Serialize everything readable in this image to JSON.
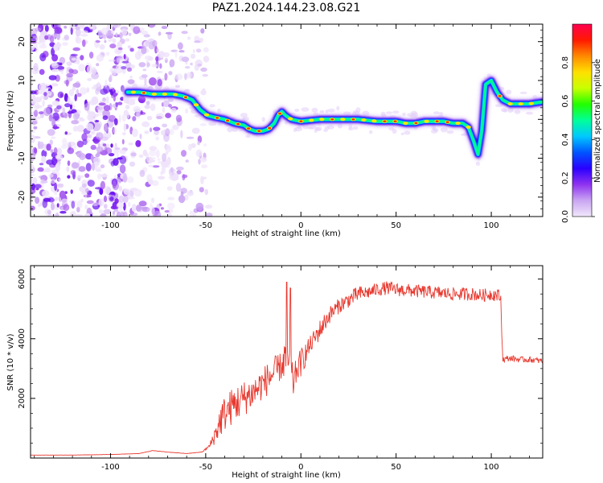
{
  "page_title": "PAZ1.2024.144.23.08.G21",
  "chart_data": [
    {
      "type": "heatmap",
      "title": "PAZ1.2024.144.23.08.G21",
      "xlabel": "Height of straight line (km)",
      "ylabel": "Frequency (Hz)",
      "xlim": [
        -142,
        127
      ],
      "ylim": [
        -25,
        24.5
      ],
      "xticks": [
        -100,
        -50,
        0,
        50,
        100
      ],
      "yticks": [
        -20,
        -10,
        0,
        10,
        20
      ],
      "grid": false,
      "colorbar": {
        "label": "Normalized spectral amplitude",
        "ticks": [
          0.0,
          0.2,
          0.4,
          0.6,
          0.8
        ],
        "range": [
          0,
          1
        ],
        "colormap": [
          "#f2e8fb",
          "#c9a6f2",
          "#8f32f0",
          "#2a00ff",
          "#0055ff",
          "#00c8ff",
          "#00ff9a",
          "#22ff00",
          "#c8ff00",
          "#ffe000",
          "#ff8a00",
          "#ff1a00",
          "#ff0050"
        ]
      },
      "ridge": {
        "x": [
          -91,
          -85,
          -78,
          -72,
          -67,
          -62,
          -57,
          -53,
          -49,
          -45,
          -40,
          -35,
          -30,
          -27,
          -24,
          -20,
          -17,
          -14,
          -12,
          -10,
          -8,
          -5,
          0,
          10,
          20,
          30,
          40,
          50,
          55,
          60,
          65,
          70,
          75,
          80,
          85,
          88,
          91,
          93,
          95,
          97,
          100,
          103,
          106,
          110,
          115,
          120,
          127
        ],
        "freq": [
          7,
          7,
          6.5,
          6.5,
          6.5,
          6,
          5,
          2.5,
          1,
          0.5,
          0,
          -1,
          -1.5,
          -2.5,
          -3,
          -3,
          -2.5,
          -1,
          1,
          2,
          1,
          0,
          -0.5,
          0,
          0,
          0,
          -0.5,
          -0.5,
          -1,
          -1,
          -0.5,
          -0.5,
          -0.5,
          -1,
          -1,
          -2,
          -6,
          -9,
          -3,
          9,
          10,
          7,
          5,
          4,
          4,
          4,
          4.5
        ]
      }
    },
    {
      "type": "line",
      "title": "",
      "xlabel": "Height of straight line (km)",
      "ylabel": "SNR (10 * v/v)",
      "xlim": [
        -142,
        127
      ],
      "ylim": [
        0,
        6450
      ],
      "xticks": [
        -100,
        -50,
        0,
        50,
        100
      ],
      "yticks": [
        2000,
        4000,
        6000
      ],
      "grid": false,
      "line_color": "#e8382e",
      "trend": {
        "x": [
          -142,
          -120,
          -100,
          -85,
          -78,
          -70,
          -60,
          -52,
          -48,
          -45,
          -42,
          -40,
          -35,
          -30,
          -25,
          -20,
          -15,
          -10,
          -8,
          -6,
          -4,
          -2,
          0,
          5,
          10,
          15,
          20,
          25,
          30,
          35,
          40,
          45,
          50,
          60,
          70,
          80,
          90,
          95,
          100,
          104,
          105,
          106,
          110,
          115,
          120,
          127
        ],
        "y": [
          100,
          100,
          120,
          150,
          250,
          200,
          150,
          200,
          400,
          800,
          1300,
          1500,
          1800,
          2000,
          2200,
          2500,
          2800,
          3100,
          3400,
          3200,
          2500,
          3000,
          3200,
          3800,
          4300,
          4800,
          5100,
          5300,
          5500,
          5550,
          5650,
          5700,
          5650,
          5600,
          5550,
          5500,
          5500,
          5450,
          5500,
          5450,
          5300,
          3300,
          3350,
          3300,
          3300,
          3250
        ]
      },
      "noise_pct": [
        2,
        2,
        2,
        2,
        2,
        2,
        2,
        3,
        20,
        45,
        45,
        40,
        35,
        30,
        25,
        22,
        20,
        15,
        25,
        20,
        20,
        15,
        15,
        8,
        8,
        6,
        5,
        5,
        5,
        4,
        4,
        4,
        4,
        4,
        4,
        4,
        4,
        4,
        4,
        4,
        4,
        3,
        3,
        3,
        3,
        3
      ],
      "spikes": [
        {
          "x": -7.5,
          "y": 5900
        },
        {
          "x": -5.5,
          "y": 5700
        }
      ]
    }
  ]
}
